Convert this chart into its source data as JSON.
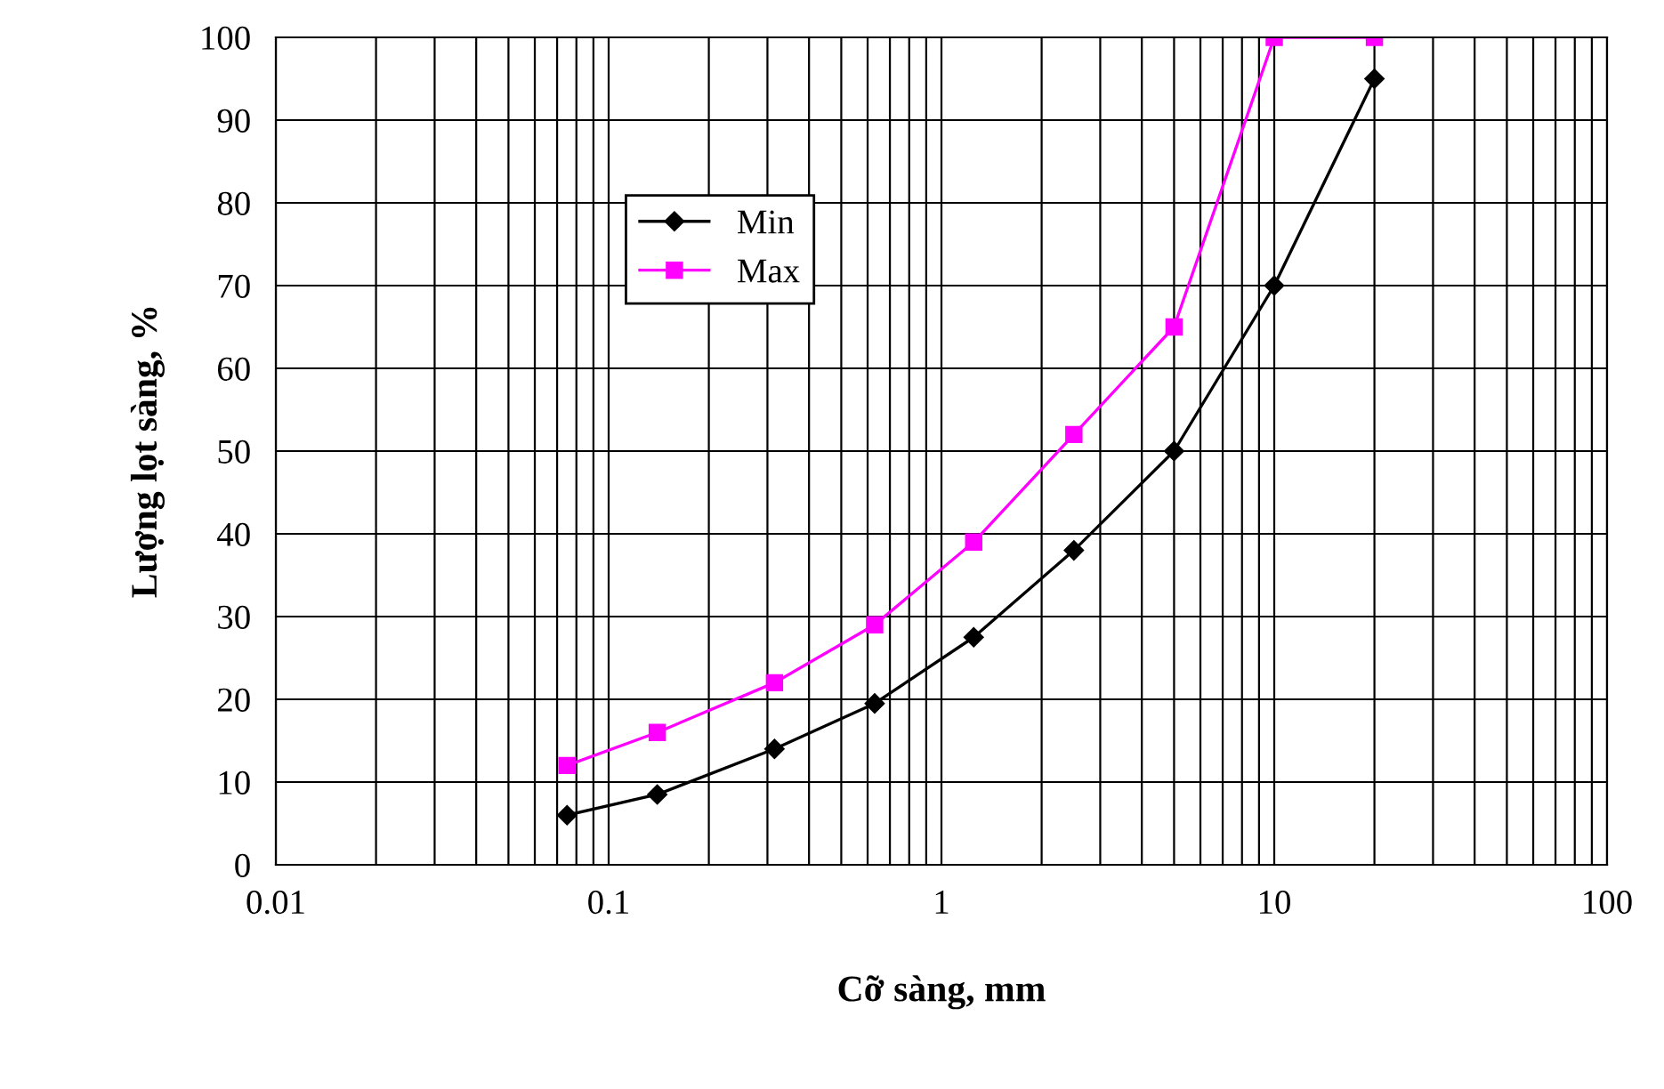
{
  "chart_data": {
    "type": "line",
    "xlabel": "Cỡ sàng, mm",
    "ylabel": "Lượng lọt sàng, %",
    "x": [
      0.075,
      0.14,
      0.315,
      0.63,
      1.25,
      2.5,
      5,
      10,
      20
    ],
    "series": [
      {
        "name": "Min",
        "color": "#000000",
        "marker": "diamond",
        "values": [
          6,
          8.5,
          14,
          19.5,
          27.5,
          38,
          50,
          70,
          95
        ]
      },
      {
        "name": "Max",
        "color": "#ff00ff",
        "marker": "square",
        "values": [
          12,
          16,
          22,
          29,
          39,
          52,
          65,
          100,
          100
        ]
      }
    ],
    "log": "x",
    "xlim": [
      0.01,
      100
    ],
    "xticks": [
      0.01,
      0.1,
      1,
      10,
      100
    ],
    "ylim": [
      0,
      100
    ],
    "yticks": [
      0,
      10,
      20,
      30,
      40,
      50,
      60,
      70,
      80,
      90,
      100
    ],
    "grid": true,
    "legend": "top left",
    "line_style": "solid"
  }
}
